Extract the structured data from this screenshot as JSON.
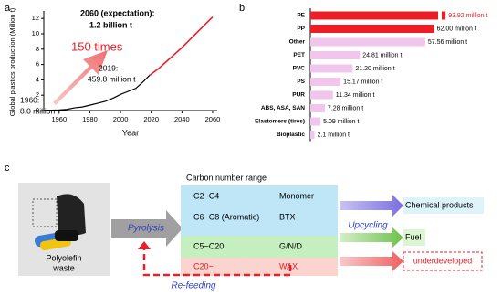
{
  "chart_data": [
    {
      "type": "line",
      "panel_label": "a",
      "xlabel": "Year",
      "ylabel": "Global plastics production (Million t)",
      "xlim": [
        1950,
        2063
      ],
      "xticks": [
        1960,
        1980,
        2000,
        2020,
        2040,
        2060
      ],
      "ylim": [
        0,
        12.5
      ],
      "yticks": [
        0,
        2,
        4,
        6,
        8,
        10,
        12
      ],
      "series": [
        {
          "color": "#000000",
          "x": [
            1950,
            1955,
            1960,
            1965,
            1970,
            1975,
            1980,
            1985,
            1990,
            1995,
            2000,
            2005,
            2010,
            2015,
            2019
          ],
          "values": [
            0.02,
            0.05,
            0.08,
            0.15,
            0.35,
            0.46,
            0.7,
            0.95,
            1.2,
            1.6,
            2.1,
            2.5,
            2.9,
            3.8,
            4.6
          ]
        },
        {
          "color": "#e8202a",
          "x": [
            2019,
            2025,
            2030,
            2035,
            2040,
            2045,
            2050,
            2055,
            2060
          ],
          "values": [
            4.6,
            5.5,
            6.4,
            7.3,
            8.2,
            9.2,
            10.2,
            11.2,
            12.2
          ]
        }
      ],
      "annotations": [
        "2060 (expectation):",
        "1.2 billion t",
        "150 times",
        "2019:",
        "459.8 million t",
        "1960:",
        "8.0 million t"
      ]
    },
    {
      "type": "hbar",
      "panel_label": "b",
      "categories": [
        "PE",
        "PP",
        "Other",
        "PET",
        "PVC",
        "PS",
        "PUR",
        "ABS, ASA, SAN",
        "Elastomers (tires)",
        "Bioplastic"
      ],
      "values": [
        93.92,
        62.0,
        57.56,
        24.81,
        21.2,
        15.17,
        11.34,
        7.28,
        5.09,
        2.1
      ],
      "value_labels": [
        "93.92 million t",
        "62.00 million t",
        "57.56 million t",
        "24.81 million t",
        "21.20 million t",
        "15.17 million t",
        "11.34 million t",
        "7.28 million t",
        "5.09 million t",
        "2.1 million t"
      ],
      "colors": [
        "#ee1c25",
        "#ee1c25",
        "#f2c6ec",
        "#f2c6ec",
        "#f2c6ec",
        "#f2c6ec",
        "#f2c6ec",
        "#f2c6ec",
        "#f2c6ec",
        "#f2c6ec"
      ],
      "value_label_colors": [
        "#ee1c25",
        "#000000",
        "#000000",
        "#000000",
        "#000000",
        "#000000",
        "#000000",
        "#000000",
        "#000000",
        "#000000"
      ],
      "xlim": [
        0,
        96
      ],
      "xbreak": [
        64,
        92
      ]
    }
  ],
  "diagram": {
    "panel_label": "c",
    "heading": "Carbon number range",
    "rows": [
      [
        "C2~C4",
        "Monomer"
      ],
      [
        "C6~C8 (Aromatic)",
        "BTX"
      ],
      [
        "C5~C20",
        "G/N/D"
      ],
      [
        "C20~",
        "WAX"
      ]
    ],
    "input": [
      "Polyolefin",
      "waste"
    ],
    "process": "Pyrolysis",
    "upcycling": "Upcycling",
    "outputs": [
      "Chemical products",
      "Fuel",
      "underdeveloped"
    ],
    "loop": "Re-feeding"
  }
}
